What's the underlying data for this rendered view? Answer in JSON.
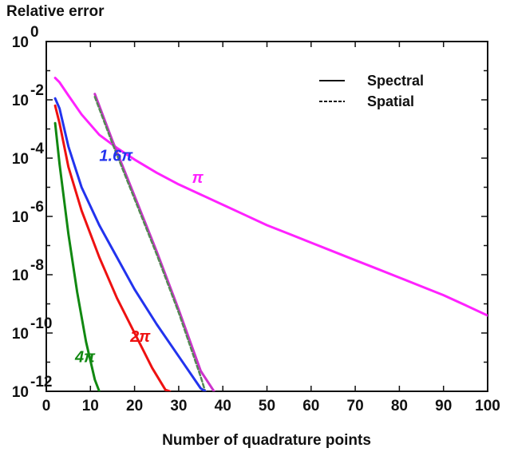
{
  "chart_data": {
    "type": "line",
    "ylabel": "Relative error",
    "xlabel": "Number of quadrature points",
    "xlim": [
      0,
      100
    ],
    "ylim_exponent": [
      -12,
      0
    ],
    "yscale": "log",
    "grid": false,
    "legend_position": "top-right",
    "x_ticks": [
      0,
      10,
      20,
      30,
      40,
      50,
      60,
      70,
      80,
      90,
      100
    ],
    "y_ticks": [
      {
        "base": "10",
        "exp": "0",
        "value": 0
      },
      {
        "base": "10",
        "exp": "-2",
        "value": -2
      },
      {
        "base": "10",
        "exp": "-4",
        "value": -4
      },
      {
        "base": "10",
        "exp": "-6",
        "value": -6
      },
      {
        "base": "10",
        "exp": "-8",
        "value": -8
      },
      {
        "base": "10",
        "exp": "-10",
        "value": -10
      },
      {
        "base": "10",
        "exp": "-12",
        "value": -12
      }
    ],
    "legend": [
      {
        "label": "Spectral",
        "style": "solid"
      },
      {
        "label": "Spatial",
        "style": "dashed"
      }
    ],
    "series": [
      {
        "name": "π",
        "color": "#ff22ff",
        "label_x": 33,
        "label_y": -4.85,
        "x": [
          2,
          3,
          5,
          8,
          12,
          16,
          20,
          25,
          30,
          35,
          40,
          45,
          50,
          55,
          60,
          65,
          70,
          75,
          80,
          85,
          90,
          95,
          100
        ],
        "log10_y": [
          -1.25,
          -1.4,
          -1.85,
          -2.5,
          -3.2,
          -3.65,
          -4.05,
          -4.5,
          -4.9,
          -5.25,
          -5.6,
          -5.95,
          -6.3,
          -6.6,
          -6.9,
          -7.2,
          -7.5,
          -7.8,
          -8.1,
          -8.4,
          -8.7,
          -9.05,
          -9.4
        ]
      },
      {
        "name": "π (steep)",
        "color": "#cc33cc",
        "x": [
          11,
          15,
          20,
          25,
          30,
          35,
          38
        ],
        "log10_y": [
          -1.8,
          -3.4,
          -5.3,
          -7.2,
          -9.2,
          -11.3,
          -12
        ]
      },
      {
        "name": "π (steep, spatial)",
        "color": "#558855",
        "dashed": true,
        "x": [
          11,
          15,
          20,
          25,
          30,
          35,
          36
        ],
        "log10_y": [
          -1.9,
          -3.5,
          -5.4,
          -7.3,
          -9.3,
          -11.5,
          -12
        ]
      },
      {
        "name": "1.6π",
        "color": "#2233ee",
        "label_x": 12,
        "label_y": -4.1,
        "x": [
          2,
          3,
          5,
          8,
          12,
          16,
          20,
          25,
          30,
          35,
          36
        ],
        "log10_y": [
          -1.95,
          -2.3,
          -3.6,
          -5.0,
          -6.3,
          -7.4,
          -8.5,
          -9.7,
          -10.8,
          -11.9,
          -12
        ]
      },
      {
        "name": "2π",
        "color": "#ee1111",
        "label_x": 19,
        "label_y": -10.3,
        "x": [
          2,
          3,
          5,
          8,
          12,
          16,
          20,
          24,
          27,
          28
        ],
        "log10_y": [
          -2.2,
          -2.8,
          -4.3,
          -5.8,
          -7.4,
          -8.8,
          -10.0,
          -11.2,
          -11.95,
          -12
        ]
      },
      {
        "name": "4π",
        "color": "#118811",
        "label_x": 6.5,
        "label_y": -11.0,
        "x": [
          2,
          3,
          5,
          7,
          9,
          11,
          12
        ],
        "log10_y": [
          -2.8,
          -4.2,
          -6.6,
          -8.6,
          -10.3,
          -11.6,
          -12
        ]
      }
    ]
  }
}
